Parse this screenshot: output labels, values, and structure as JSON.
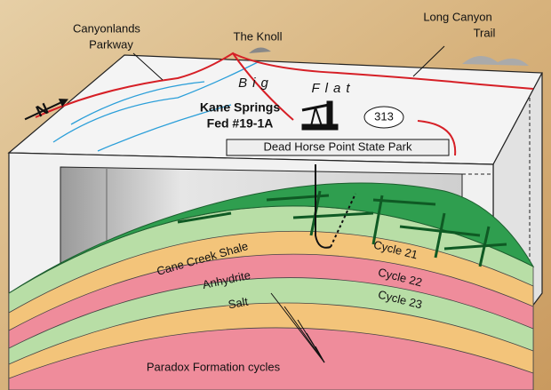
{
  "labels": {
    "canyonlands_parkway": [
      "Canyonlands",
      "Parkway"
    ],
    "the_knoll": "The Knoll",
    "long_canyon_trail": [
      "Long Canyon",
      "Trail"
    ],
    "north": "N",
    "big_flat": [
      "Big",
      "Flat"
    ],
    "well": [
      "Kane Springs",
      "Fed #19-1A"
    ],
    "road_number": "313",
    "park": "Dead Horse Point State Park",
    "cane_creek_shale": "Cane Creek Shale",
    "anhydrite": "Anhydrite",
    "salt": "Salt",
    "cycle_21": "Cycle 21",
    "cycle_22": "Cycle 22",
    "cycle_23": "Cycle 23",
    "paradox": "Paradox Formation cycles"
  }
}
